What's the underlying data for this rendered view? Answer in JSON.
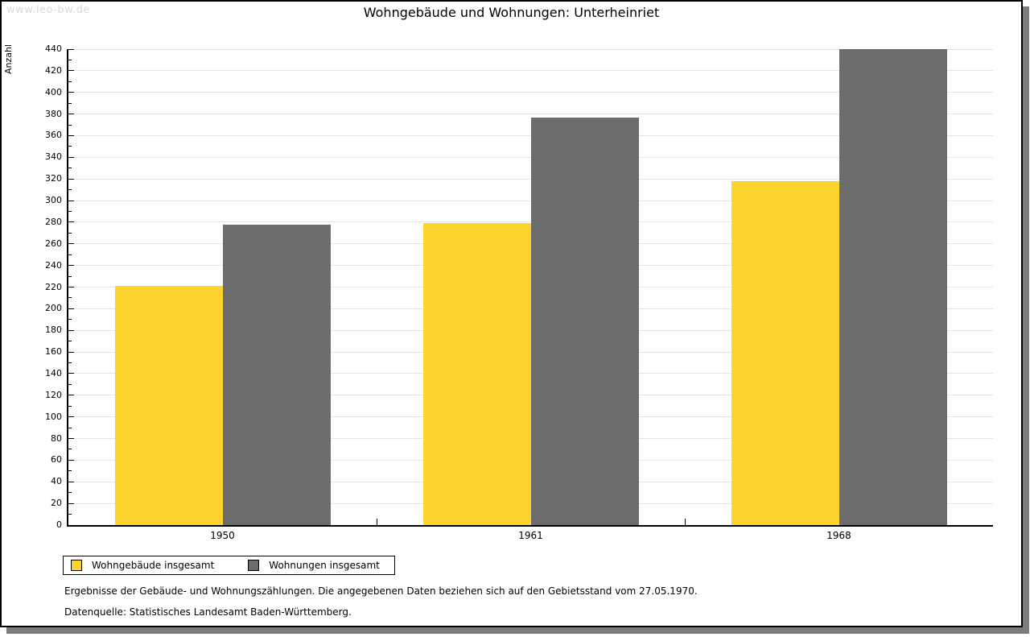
{
  "watermark": "www.leo-bw.de",
  "title": "Wohngebäude und Wohnungen: Unterheinriet",
  "chart_data": {
    "type": "bar",
    "title": "Wohngebäude und Wohnungen: Unterheinriet",
    "categories": [
      "1950",
      "1961",
      "1968"
    ],
    "series": [
      {
        "name": "Wohngebäude insgesamt",
        "color": "#fdd32f",
        "values": [
          221,
          279,
          318
        ]
      },
      {
        "name": "Wohnungen insgesamt",
        "color": "#6c6c6c",
        "values": [
          278,
          377,
          440
        ]
      }
    ],
    "xlabel": "",
    "ylabel": "Anzahl",
    "ylim": [
      0,
      440
    ],
    "ytick_step": 20,
    "ytick_minor_step": 10,
    "grid": true,
    "legend_position": "bottom-left"
  },
  "footnotes": {
    "line1": "Ergebnisse der Gebäude- und Wohnungszählungen. Die angegebenen Daten beziehen sich auf den Gebietsstand vom 27.05.1970.",
    "line2": "Datenquelle: Statistisches Landesamt Baden-Württemberg."
  },
  "colors": {
    "bar_yellow": "#fdd32f",
    "bar_gray": "#6c6c6c",
    "gridline": "#e4e4e4",
    "watermark": "#d9d9d9",
    "frame_border": "#000000",
    "frame_shadow": "#7c7c7c"
  }
}
